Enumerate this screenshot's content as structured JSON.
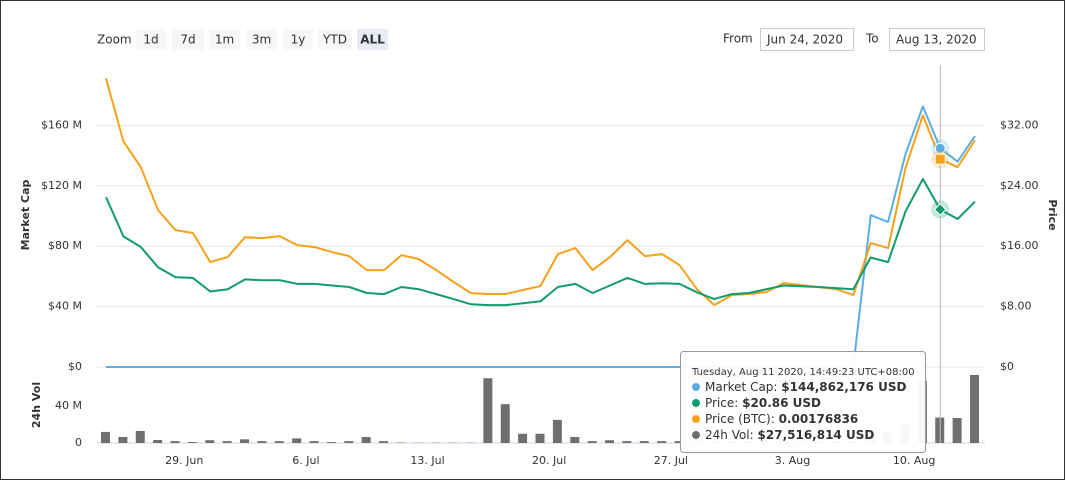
{
  "zoom": {
    "label": "Zoom",
    "buttons": [
      "1d",
      "7d",
      "1m",
      "3m",
      "1y",
      "YTD",
      "ALL"
    ],
    "selected": 6
  },
  "range": {
    "from_label": "From",
    "from": "Jun 24, 2020",
    "to_label": "To",
    "to": "Aug 13, 2020"
  },
  "chart_data": {
    "type": "line",
    "categories": [
      null,
      null,
      null,
      null,
      null,
      "29. Jun",
      null,
      null,
      null,
      null,
      null,
      null,
      "6. Jul",
      null,
      null,
      null,
      null,
      null,
      null,
      "13. Jul",
      null,
      null,
      null,
      null,
      null,
      null,
      "20. Jul",
      null,
      null,
      null,
      null,
      null,
      null,
      "27. Jul",
      null,
      null,
      null,
      null,
      null,
      null,
      "3. Aug",
      null,
      null,
      null,
      null,
      null,
      null,
      "10. Aug",
      null,
      null,
      null
    ],
    "ylabel": "Market Cap",
    "y2label": "Price",
    "grid": true,
    "ylim": [
      0,
      200000000
    ],
    "yticks": [
      {
        "value": 0,
        "label": "$0"
      },
      {
        "value": 40000000,
        "label": "$40 M"
      },
      {
        "value": 80000000,
        "label": "$80 M"
      },
      {
        "value": 120000000,
        "label": "$120 M"
      },
      {
        "value": 160000000,
        "label": "$160 M"
      }
    ],
    "y2lim": [
      0,
      40
    ],
    "y2ticks": [
      {
        "value": 0,
        "label": "$0"
      },
      {
        "value": 8,
        "label": "$8.00"
      },
      {
        "value": 16,
        "label": "$16.00"
      },
      {
        "value": 24,
        "label": "$24.00"
      },
      {
        "value": 32,
        "label": "$32.00"
      }
    ],
    "y3lim": [
      0,
      0.00257
    ],
    "series": [
      {
        "color": "#5aaee3",
        "axis": "y",
        "values": [
          0,
          0,
          0,
          0,
          0,
          0,
          0,
          0,
          0,
          0,
          0,
          0,
          0,
          0,
          0,
          0,
          0,
          0,
          0,
          0,
          0,
          0,
          0,
          0,
          0,
          0,
          0,
          0,
          0,
          0,
          0,
          0,
          0,
          0,
          0,
          0,
          0,
          0,
          0,
          0,
          0,
          0,
          0,
          0,
          100500000,
          96000000,
          141000000,
          172600000,
          144862176,
          136000000,
          153000000
        ]
      },
      {
        "color": "#129b6c",
        "axis": "y2",
        "values": [
          22.5,
          17.3,
          15.9,
          13.2,
          11.9,
          11.8,
          10.0,
          10.3,
          11.6,
          11.5,
          11.5,
          11.0,
          11.0,
          10.8,
          10.6,
          9.8,
          9.65,
          10.6,
          10.3,
          9.65,
          9.0,
          8.3,
          8.2,
          8.2,
          8.45,
          8.7,
          10.6,
          11.0,
          9.8,
          10.8,
          11.8,
          11.0,
          11.1,
          11.0,
          9.9,
          9.0,
          9.65,
          9.8,
          10.3,
          10.8,
          10.7,
          10.6,
          10.45,
          10.3,
          14.5,
          13.9,
          20.6,
          24.9,
          20.86,
          19.6,
          21.9
        ]
      },
      {
        "color": "#f5a11c",
        "axis": "y3",
        "values": [
          0.002457,
          0.001921,
          0.0017,
          0.001335,
          0.001165,
          0.00114,
          0.000893,
          0.000935,
          0.001105,
          0.001097,
          0.001114,
          0.001037,
          0.00102,
          0.000978,
          0.000944,
          0.000825,
          0.000825,
          0.000952,
          0.000918,
          0.000825,
          0.000723,
          0.000629,
          0.000621,
          0.000621,
          0.000655,
          0.000689,
          0.000961,
          0.001012,
          0.000825,
          0.000935,
          0.00108,
          0.000944,
          0.000961,
          0.000867,
          0.000663,
          0.000527,
          0.000612,
          0.000621,
          0.000638,
          0.000714,
          0.000697,
          0.00068,
          0.000663,
          0.000612,
          0.001054,
          0.001012,
          0.001692,
          0.002142,
          0.00176836,
          0.0017,
          0.00193
        ]
      }
    ],
    "volume": {
      "label": "24h Vol",
      "color": "#6f6f6f",
      "ylim": [
        0,
        80000000
      ],
      "yticks": [
        0,
        {
          "value": 40000000,
          "label": "40 M"
        }
      ],
      "values": [
        12000000,
        6500000,
        13000000,
        3200000,
        2000000,
        1000000,
        3000000,
        2000000,
        4000000,
        2000000,
        2000000,
        5000000,
        2000000,
        1000000,
        2000000,
        6500000,
        2000000,
        500000,
        300000,
        300000,
        300000,
        300000,
        70000000,
        42000000,
        10000000,
        10000000,
        25000000,
        6500000,
        2000000,
        3000000,
        2000000,
        2000000,
        2000000,
        2000000,
        2000000,
        2000000,
        2000000,
        2000000,
        2000000,
        2000000,
        2000000,
        2000000,
        2000000,
        2000000,
        8000000,
        11000000,
        19500000,
        67000000,
        27516814,
        27000000,
        73500000
      ]
    },
    "tooltip": {
      "title": "Tuesday, Aug 11 2020, 14:49:23 UTC+08:00",
      "rows": [
        {
          "label": "Market Cap:",
          "value": "$144,862,176 USD"
        },
        {
          "label": "Price:",
          "value": "$20.86 USD"
        },
        {
          "label": "Price (BTC):",
          "value": "0.00176836"
        },
        {
          "label": "24h Vol:",
          "value": "$27,516,814 USD"
        }
      ]
    }
  }
}
